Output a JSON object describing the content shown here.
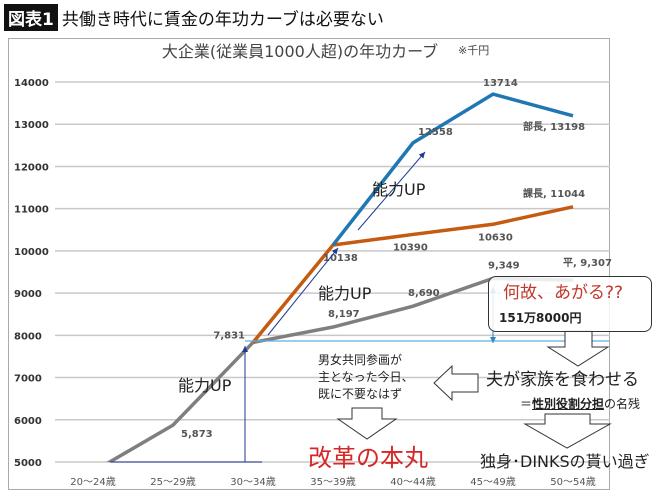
{
  "header": {
    "badge": "図表1",
    "title": "共働き時代に賃金の年功カーブは必要ない"
  },
  "chart_data": {
    "type": "line",
    "title": "大企業(従業員1000人超)の年功カーブ",
    "unit_note": "※千円",
    "categories": [
      "20～24歳",
      "25～29歳",
      "30～34歳",
      "35～39歳",
      "40～44歳",
      "45～49歳",
      "50～54歳"
    ],
    "ylim": [
      5000,
      14000
    ],
    "yticks": [
      5000,
      6000,
      7000,
      8000,
      9000,
      10000,
      11000,
      12000,
      13000,
      14000
    ],
    "grid": true,
    "series": [
      {
        "name": "平",
        "color": "#7f7f7f",
        "values": [
          4770,
          5873,
          7831,
          8197,
          8690,
          9349,
          9307
        ],
        "labels": [
          "",
          "5,873",
          "7,831",
          "8,197",
          "8,690",
          "9,349",
          "平, 9,307"
        ]
      },
      {
        "name": "課長",
        "color": "#c55a11",
        "values": [
          null,
          null,
          7831,
          10138,
          10390,
          10630,
          11044
        ],
        "labels": [
          "",
          "",
          "",
          "10138",
          "10390",
          "10630",
          "課長, 11044"
        ]
      },
      {
        "name": "部長",
        "color": "#1f77b4",
        "values": [
          null,
          null,
          null,
          10138,
          12558,
          13714,
          13198
        ],
        "labels": [
          "",
          "",
          "",
          "",
          "12558",
          "13714",
          "部長, 13198"
        ]
      }
    ]
  },
  "annotations": {
    "ability_up_1": "能力UP",
    "ability_up_2": "能力UP",
    "ability_up_3": "能力UP",
    "why_rise": "何故、あがる??",
    "gap_amount": "151万8000円",
    "husband": "夫が家族を食わせる",
    "role_prefix": "＝",
    "role_bold": "性別役割分担",
    "role_suffix": "の名残",
    "gender_equal": [
      "男女共同参画が",
      "主となった今日、",
      "既に不要なはず"
    ],
    "reform": "改革の本丸",
    "overpaid": "独身･DINKSの貰い過ぎ"
  }
}
